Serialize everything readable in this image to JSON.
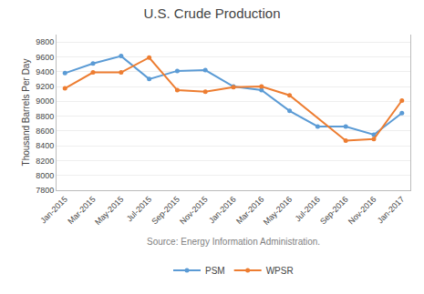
{
  "chart_data": {
    "type": "line",
    "title": "U.S. Crude Production",
    "ylabel": "Thousand Barrels Per Day",
    "annotations": [
      "Source: Energy Information Administration."
    ],
    "categories": [
      "Jan-2015",
      "Mar-2015",
      "May-2015",
      "Jul-2015",
      "Sep-2015",
      "Nov-2015",
      "Jan-2016",
      "Mar-2016",
      "May-2016",
      "Jul-2016",
      "Sep-2016",
      "Nov-2016",
      "Jan-2017"
    ],
    "series": [
      {
        "name": "PSM",
        "color": "#5B9BD5",
        "marker": "circle",
        "values": [
          9380,
          9510,
          9610,
          9300,
          9410,
          9420,
          9200,
          9150,
          8870,
          8660,
          8660,
          8550,
          8840
        ]
      },
      {
        "name": "WPSR",
        "color": "#ED7D31",
        "marker": "circle",
        "values": [
          9175,
          9390,
          9390,
          9590,
          9150,
          9130,
          9190,
          9200,
          9080,
          null,
          8470,
          8490,
          9010
        ]
      }
    ],
    "ylim": [
      7800,
      9900
    ],
    "yticks": [
      7800,
      8000,
      8200,
      8400,
      8600,
      8800,
      9000,
      9200,
      9400,
      9600,
      9800
    ],
    "grid": true,
    "legend": "bottom"
  }
}
